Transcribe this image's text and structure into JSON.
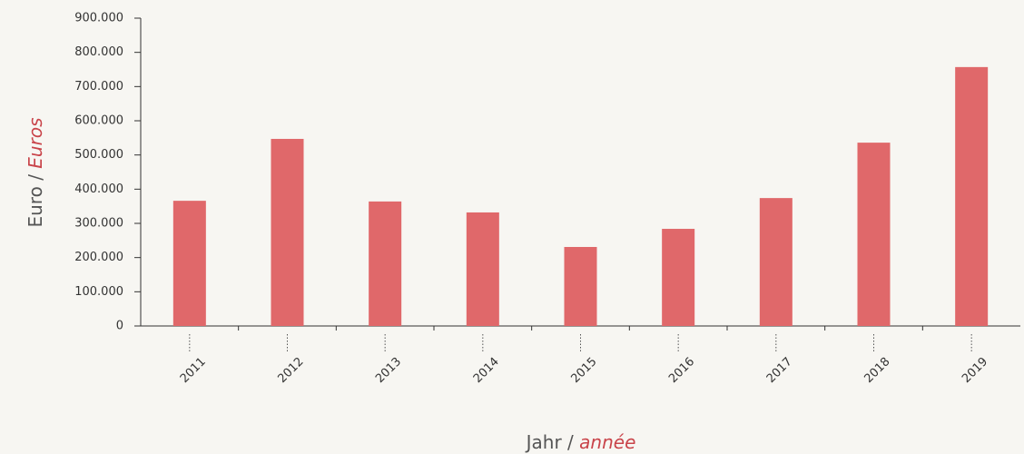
{
  "chart_data": {
    "type": "bar",
    "y_label": [
      "Euro",
      "/",
      "Euros"
    ],
    "x_label": [
      "Jahr",
      "/",
      "année"
    ],
    "categories": [
      "2011",
      "2012",
      "2013",
      "2014",
      "2015",
      "2016",
      "2017",
      "2018",
      "2019"
    ],
    "values": [
      366000,
      547000,
      364000,
      332000,
      231000,
      284000,
      374000,
      536000,
      757000
    ],
    "color": "#e0686a",
    "ylim": [
      0,
      900000
    ],
    "yticks": [
      0,
      {
        "value": 100000,
        "label": "100.000"
      },
      {
        "value": 200000,
        "label": "200.000"
      },
      {
        "value": 300000,
        "label": "300.000"
      },
      {
        "value": 400000,
        "label": "400.000"
      },
      {
        "value": 500000,
        "label": "500.000"
      },
      {
        "value": 600000,
        "label": "600.000"
      },
      {
        "value": 700000,
        "label": "700.000"
      },
      {
        "value": 800000,
        "label": "800.000"
      },
      {
        "value": 900000,
        "label": "900.000"
      }
    ],
    "grid": false
  }
}
